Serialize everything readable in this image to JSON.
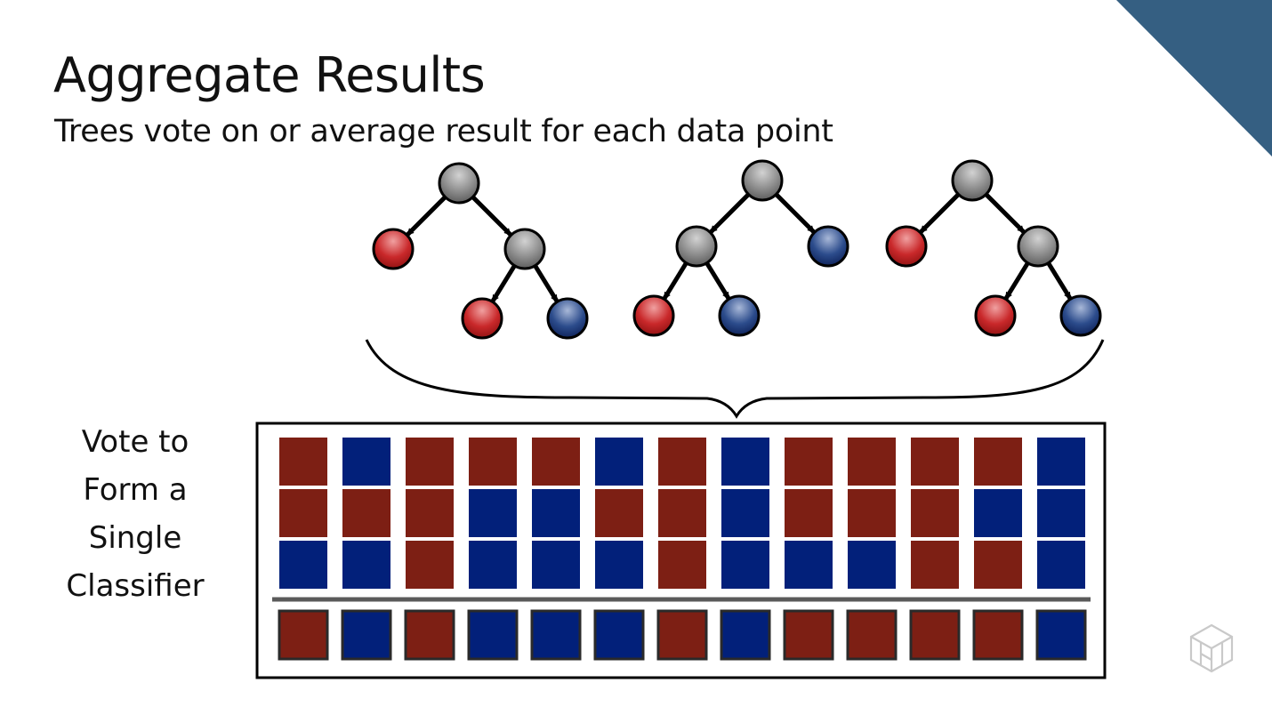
{
  "slide": {
    "title": "Aggregate Results",
    "subtitle": "Trees vote on or average result for each data point",
    "vote_label_lines": [
      "Vote to",
      "Form a",
      "Single",
      "Classifier"
    ]
  },
  "colors": {
    "red": "#7d1f14",
    "blue": "#02207a",
    "accent": "#355f82",
    "node_gray": "#7a7a7a",
    "node_red": "#c0282a",
    "node_blue": "#1c3a78",
    "divider": "#5a5a5a"
  },
  "trees": [
    {
      "root": "gray",
      "left": "red",
      "right": {
        "node": "gray",
        "left": "red",
        "right": "blue"
      }
    },
    {
      "root": "gray",
      "left": {
        "node": "gray",
        "left": "red",
        "right": "blue"
      },
      "right": "blue"
    },
    {
      "root": "gray",
      "left": "red",
      "right": {
        "node": "gray",
        "left": "red",
        "right": "blue"
      }
    }
  ],
  "vote_rows": [
    [
      "red",
      "blue",
      "red",
      "red",
      "red",
      "blue",
      "red",
      "blue",
      "red",
      "red",
      "red",
      "red",
      "blue"
    ],
    [
      "red",
      "red",
      "red",
      "blue",
      "blue",
      "red",
      "red",
      "blue",
      "red",
      "red",
      "red",
      "blue",
      "blue"
    ],
    [
      "blue",
      "blue",
      "red",
      "blue",
      "blue",
      "blue",
      "red",
      "blue",
      "blue",
      "blue",
      "red",
      "red",
      "blue"
    ]
  ],
  "result_row": [
    "red",
    "blue",
    "red",
    "blue",
    "blue",
    "blue",
    "red",
    "blue",
    "red",
    "red",
    "red",
    "red",
    "blue"
  ],
  "logo_icon": "cube-logo-icon"
}
